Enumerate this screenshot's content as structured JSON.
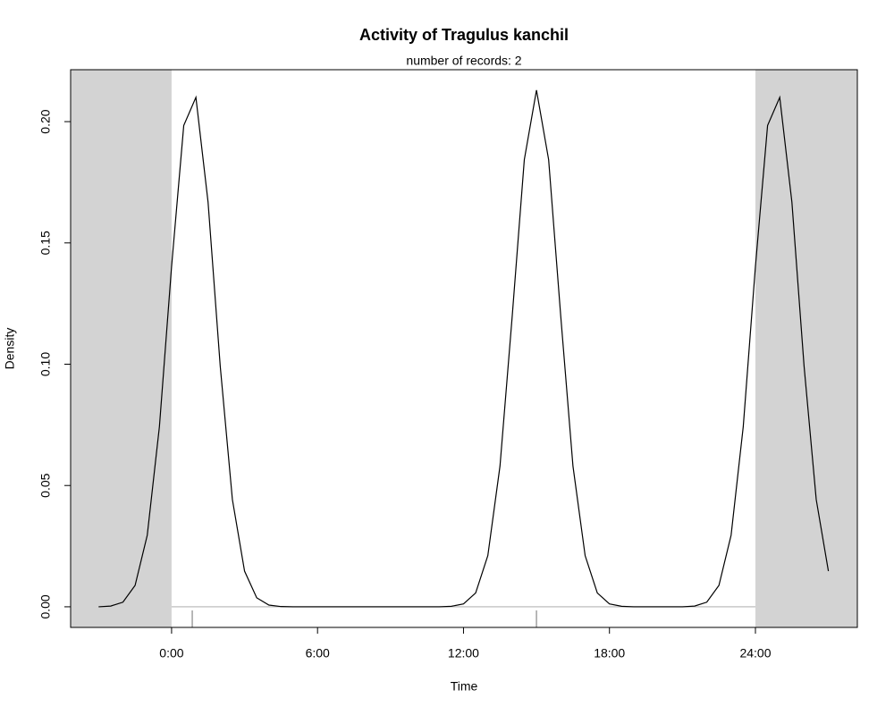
{
  "chart_data": {
    "type": "line",
    "title": "Activity of Tragulus kanchil",
    "subtitle": "number of records: 2",
    "x_label": "Time",
    "y_label": "Density",
    "x": [
      -3,
      -2.5,
      -2,
      -1.5,
      -1,
      -0.5,
      0,
      0.5,
      1,
      1.5,
      2,
      2.5,
      3,
      3.5,
      4,
      4.5,
      5,
      5.5,
      6,
      6.5,
      7,
      7.5,
      8,
      8.5,
      9,
      9.5,
      10,
      10.5,
      11,
      11.5,
      12,
      12.5,
      13,
      13.5,
      14,
      14.5,
      15,
      15.5,
      16,
      16.5,
      17,
      17.5,
      18,
      18.5,
      19,
      19.5,
      20,
      20.5,
      21,
      21.5,
      22,
      22.5,
      23,
      23.5,
      24,
      24.5,
      25,
      25.5,
      26,
      26.5,
      27
    ],
    "series": [
      {
        "color": "#000000",
        "values": [
          0,
          0.0003,
          0.0019,
          0.0088,
          0.0295,
          0.0743,
          0.1403,
          0.1984,
          0.21,
          0.1668,
          0.0992,
          0.0442,
          0.0147,
          0.0037,
          0.0007,
          0.0001,
          0,
          0,
          0,
          0,
          0,
          0,
          0,
          0,
          0,
          0,
          0,
          0,
          0,
          0.0002,
          0.0012,
          0.0057,
          0.0211,
          0.058,
          0.1195,
          0.1843,
          0.213,
          0.1843,
          0.1195,
          0.058,
          0.0211,
          0.0057,
          0.0012,
          0.0002,
          0,
          0,
          0,
          0,
          0,
          0.0003,
          0.0019,
          0.0088,
          0.0295,
          0.0743,
          0.1403,
          0.1984,
          0.21,
          0.1668,
          0.0992,
          0.0442,
          0.0147
        ]
      }
    ],
    "records": [
      0.85,
      15
    ],
    "daylight": [
      0,
      24
    ],
    "shade_color": "#d3d3d3",
    "xlim": [
      -4.15,
      28.19
    ],
    "xticks": [
      {
        "value": 0,
        "label": "0:00"
      },
      {
        "value": 6,
        "label": "6:00"
      },
      {
        "value": 12,
        "label": "12:00"
      },
      {
        "value": 18,
        "label": "18:00"
      },
      {
        "value": 24,
        "label": "24:00"
      }
    ],
    "ylim": [
      -0.0085,
      0.2214
    ],
    "yticks": [
      {
        "value": 0,
        "label": "0.00"
      },
      0.05,
      {
        "value": 0.1,
        "label": "0.10"
      },
      0.15,
      {
        "value": 0.2,
        "label": "0.20"
      }
    ]
  }
}
